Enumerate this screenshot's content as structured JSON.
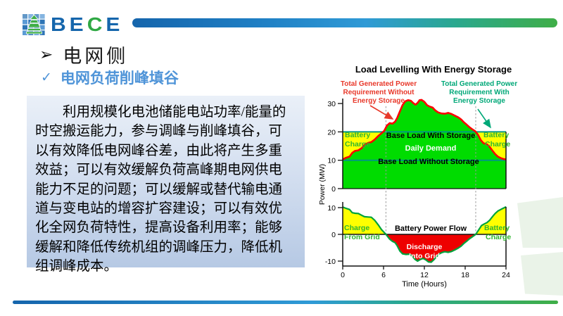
{
  "brand": {
    "logo_letters": [
      {
        "ch": "B",
        "color": "#1566ac"
      },
      {
        "ch": "E",
        "color": "#1566ac"
      },
      {
        "ch": "C",
        "color": "#2fa844"
      },
      {
        "ch": "E",
        "color": "#1566ac"
      }
    ],
    "icon_blue": "#5b9bd5",
    "icon_blue_dark": "#2e75b6",
    "icon_green": "#3fae47"
  },
  "headings": {
    "bullet_icon": "➢",
    "title": "电网侧",
    "check_icon": "✓",
    "subtitle": "电网负荷削峰填谷",
    "subtitle_color": "#4f94d8"
  },
  "paragraph": {
    "lines": [
      "利用规模化电池储能电站功率/能量的",
      "时空搬运能力，参与调峰与削峰填谷，可",
      "以有效降低电网峰谷差，由此将产生多重",
      "效益；可以有效缓解负荷高峰期电网供电",
      "能力不足的问题；可以缓解或替代输电通",
      "道与变电站的增容扩容建设；可以有效优",
      "化全网负荷特性，提高设备利用率；能够",
      "缓解和降低传统机组的调峰压力，降低机",
      "组调峰成本。"
    ]
  },
  "chart_data": {
    "type": "area",
    "title": "Load Levelling With Energy Storage",
    "xlabel": "Time (Hours)",
    "ylabel": "Power (MW)",
    "x_ticks": [
      0,
      6,
      12,
      18,
      24
    ],
    "dashed_hours": [
      6.35,
      19.55
    ],
    "upper": {
      "y_ticks": [
        0,
        10,
        20,
        30
      ],
      "ylim": [
        0,
        31.5
      ],
      "base_load_with_storage_mw": 20,
      "base_load_without_storage_mw": 10,
      "annotation_without": {
        "lines": [
          "Total Generated Power",
          "Requirement Without",
          "Energy Storage"
        ]
      },
      "annotation_with": {
        "lines": [
          "Total Generated Power",
          "Requirement With",
          "Energy Storage"
        ]
      },
      "labels": {
        "battery_charge_left": [
          "Battery",
          "Charge"
        ],
        "battery_charge_right": [
          "Battery",
          "Charge"
        ],
        "base_with": "Base Load With Storage",
        "daily_demand": "Daily Demand",
        "base_without": "Base Load Without Storage"
      },
      "demand": {
        "hours": [
          0,
          0.5,
          1,
          1.4,
          1.8,
          2.3,
          2.8,
          3.2,
          3.7,
          4.2,
          4.7,
          5.2,
          5.7,
          6.1,
          6.5,
          6.9,
          7.3,
          7.7,
          8,
          8.4,
          8.8,
          9.2,
          9.6,
          10,
          10.4,
          10.7,
          11,
          11.3,
          11.6,
          12,
          12.4,
          12.8,
          13.2,
          13.6,
          14,
          14.5,
          15,
          15.5,
          16,
          16.5,
          17,
          17.4,
          17.8,
          18.2,
          18.6,
          19,
          19.5,
          19.9,
          20.3,
          20.7,
          21.2,
          21.6,
          22,
          22.4,
          22.8,
          23.3,
          23.7,
          24
        ],
        "mw": [
          10.3,
          10.9,
          11.3,
          12.6,
          13.3,
          13.5,
          14.3,
          15.4,
          16.1,
          16.4,
          17.3,
          18.5,
          19.5,
          20.4,
          22.2,
          23.1,
          22.9,
          23.6,
          24.9,
          27.2,
          29.5,
          30.8,
          31.2,
          31.0,
          30.1,
          29.6,
          30.2,
          31.2,
          31.3,
          30.6,
          29.4,
          28.9,
          28.6,
          27.6,
          26.9,
          26.5,
          26.4,
          26.7,
          26.3,
          25.7,
          25.1,
          24.4,
          23.4,
          22.6,
          21.7,
          21.0,
          20.2,
          18.9,
          17.1,
          16.0,
          15.6,
          14.7,
          13.4,
          12.2,
          11.3,
          10.7,
          10.4,
          10.3
        ]
      }
    },
    "lower": {
      "y_ticks": [
        -10,
        0,
        10
      ],
      "ylim": [
        -11,
        11
      ],
      "labels": {
        "charge_from_grid": [
          "Charge",
          "From Grid"
        ],
        "flow": "Battery Power Flow",
        "discharge": [
          "Discharge",
          "Into Grid"
        ],
        "battery_charge": [
          "Battery",
          "Charge"
        ]
      },
      "battery": {
        "hours": [
          0,
          0.5,
          1,
          1.4,
          1.8,
          2.3,
          2.8,
          3.2,
          3.7,
          4.2,
          4.7,
          5.2,
          5.7,
          6.35,
          6.9,
          7.3,
          7.7,
          8,
          8.4,
          8.8,
          9.3,
          9.8,
          10.2,
          10.6,
          11,
          11.4,
          11.8,
          12.2,
          12.6,
          13,
          13.4,
          13.8,
          14.2,
          14.6,
          15,
          15.5,
          16,
          16.5,
          17,
          17.4,
          17.8,
          18.2,
          18.6,
          19,
          19.55,
          20,
          20.4,
          20.8,
          21.2,
          21.6,
          22,
          22.4,
          22.8,
          23.3,
          23.7,
          24
        ],
        "mw": [
          10.2,
          9.7,
          9.3,
          8.1,
          7.9,
          7.8,
          7.1,
          6.6,
          6.5,
          6.4,
          5.3,
          3.6,
          1.8,
          0,
          -1.8,
          -2.6,
          -3.1,
          -4.2,
          -6.2,
          -7.3,
          -7.5,
          -7.4,
          -8.1,
          -9.3,
          -10.0,
          -9.4,
          -9.0,
          -9.5,
          -10.3,
          -10.4,
          -9.5,
          -8.3,
          -7.3,
          -6.8,
          -6.5,
          -6.7,
          -6.4,
          -5.8,
          -5.1,
          -4.4,
          -3.4,
          -2.6,
          -1.7,
          -1.0,
          0,
          1.7,
          3.3,
          3.9,
          4.4,
          5.3,
          6.6,
          7.8,
          8.7,
          9.4,
          9.9,
          10.3
        ]
      }
    },
    "colors": {
      "demand_curve": "#ff0000",
      "fill_green": "#00dc00",
      "fill_yellow": "#ffff00",
      "fill_red": "#ee0000",
      "base_line": "#009883",
      "battery_curve": "#00a33c",
      "label_green": "#2fb52f",
      "text_red": "#e8392b",
      "text_green": "#00a878",
      "axis": "#111111",
      "dashed": "#9a9a9a"
    }
  }
}
